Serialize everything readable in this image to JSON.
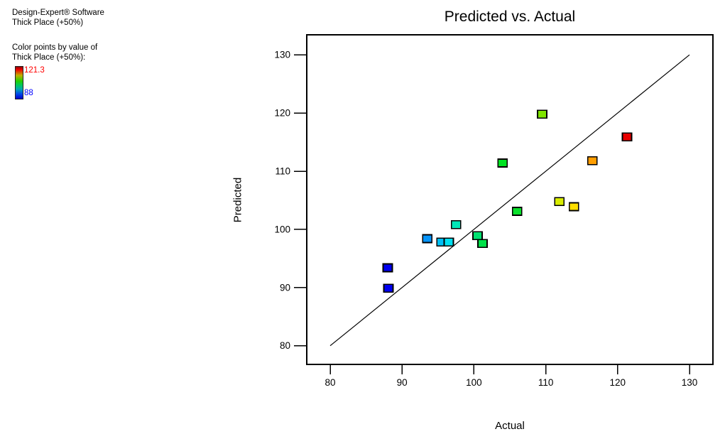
{
  "panel": {
    "software_title": "Design-Expert® Software",
    "response_name": "Thick Place (+50%)",
    "color_by_label_1": "Color points by value of",
    "color_by_label_2": "Thick Place (+50%):",
    "legend_max": "121.3",
    "legend_min": "88",
    "legend_max_color": "#FF0000",
    "legend_min_color": "#0000FF"
  },
  "chart_data": {
    "type": "scatter",
    "title": "Predicted vs. Actual",
    "xlabel": "Actual",
    "ylabel": "Predicted",
    "x_ticks": [
      80,
      90,
      100,
      110,
      120,
      130
    ],
    "y_ticks": [
      80,
      90,
      100,
      110,
      120,
      130
    ],
    "xlim": [
      76.7,
      133.4
    ],
    "ylim": [
      76.7,
      133.4
    ],
    "grid": false,
    "identity_line": {
      "x1": 80,
      "y1": 80,
      "x2": 130,
      "y2": 130,
      "color": "#000000"
    },
    "point_color_meaning": "value of Thick Place (+50%), blue=88 low to red=121.3 high",
    "points": [
      {
        "actual": 109.5,
        "predicted": 119.8,
        "color": "#7FE400"
      },
      {
        "actual": 121.3,
        "predicted": 115.9,
        "color": "#E80000"
      },
      {
        "actual": 116.5,
        "predicted": 111.8,
        "color": "#FF9E00"
      },
      {
        "actual": 104.0,
        "predicted": 111.4,
        "color": "#00E321"
      },
      {
        "actual": 111.9,
        "predicted": 104.8,
        "color": "#D8EC00"
      },
      {
        "actual": 113.9,
        "predicted": 103.9,
        "color": "#FFDF00"
      },
      {
        "actual": 106.0,
        "predicted": 103.1,
        "color": "#0AE02B"
      },
      {
        "actual": 97.5,
        "predicted": 100.8,
        "color": "#00E8B8"
      },
      {
        "actual": 100.5,
        "predicted": 98.9,
        "color": "#00E070"
      },
      {
        "actual": 93.5,
        "predicted": 98.4,
        "color": "#0795FA"
      },
      {
        "actual": 95.5,
        "predicted": 97.8,
        "color": "#00BFF5"
      },
      {
        "actual": 96.5,
        "predicted": 97.8,
        "color": "#00DFF0"
      },
      {
        "actual": 101.2,
        "predicted": 97.6,
        "color": "#00E048"
      },
      {
        "actual": 88.0,
        "predicted": 93.4,
        "color": "#0000F0"
      },
      {
        "actual": 88.1,
        "predicted": 89.9,
        "color": "#0000F0"
      }
    ]
  }
}
